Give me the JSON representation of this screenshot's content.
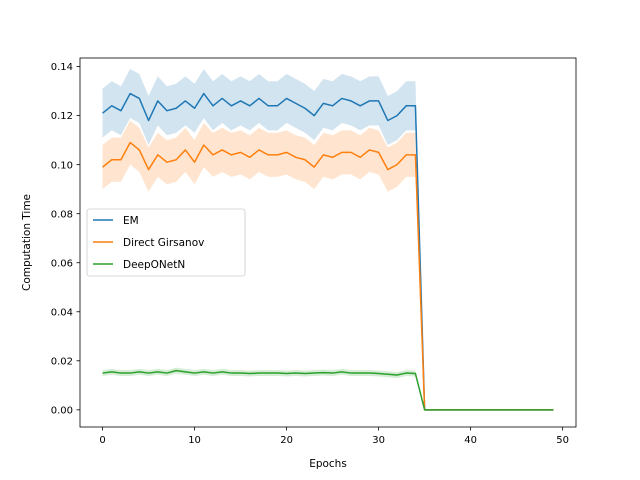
{
  "chart_data": {
    "type": "line",
    "title": "",
    "xlabel": "Epochs",
    "ylabel": "Computation Time",
    "xlim": [
      -2.45,
      51.45
    ],
    "ylim": [
      -0.007,
      0.1435
    ],
    "xticks": [
      0,
      10,
      20,
      30,
      40,
      50
    ],
    "yticks": [
      0.0,
      0.02,
      0.04,
      0.06,
      0.08,
      0.1,
      0.12,
      0.14
    ],
    "ytick_labels": [
      "0.00",
      "0.02",
      "0.04",
      "0.06",
      "0.08",
      "0.10",
      "0.12",
      "0.14"
    ],
    "legend": {
      "position": "center-left"
    },
    "grid": false,
    "series": [
      {
        "name": "EM",
        "color": "#1f77b4",
        "band_color": "#1f77b4",
        "x": [
          0,
          1,
          2,
          3,
          4,
          5,
          6,
          7,
          8,
          9,
          10,
          11,
          12,
          13,
          14,
          15,
          16,
          17,
          18,
          19,
          20,
          21,
          22,
          23,
          24,
          25,
          26,
          27,
          28,
          29,
          30,
          31,
          32,
          33,
          34,
          35,
          36,
          37,
          38,
          39,
          40,
          41,
          42,
          43,
          44,
          45,
          46,
          47,
          48,
          49
        ],
        "y": [
          0.121,
          0.124,
          0.122,
          0.129,
          0.127,
          0.118,
          0.126,
          0.122,
          0.123,
          0.126,
          0.123,
          0.129,
          0.124,
          0.127,
          0.124,
          0.126,
          0.124,
          0.127,
          0.124,
          0.124,
          0.127,
          0.125,
          0.123,
          0.12,
          0.125,
          0.124,
          0.127,
          0.126,
          0.124,
          0.126,
          0.126,
          0.118,
          0.12,
          0.124,
          0.124,
          0.0,
          0.0,
          0.0,
          0.0,
          0.0,
          0.0,
          0.0,
          0.0,
          0.0,
          0.0,
          0.0,
          0.0,
          0.0,
          0.0,
          0.0
        ],
        "band": 0.01
      },
      {
        "name": "Direct Girsanov",
        "color": "#ff7f0e",
        "band_color": "#ff7f0e",
        "x": [
          0,
          1,
          2,
          3,
          4,
          5,
          6,
          7,
          8,
          9,
          10,
          11,
          12,
          13,
          14,
          15,
          16,
          17,
          18,
          19,
          20,
          21,
          22,
          23,
          24,
          25,
          26,
          27,
          28,
          29,
          30,
          31,
          32,
          33,
          34,
          35,
          36,
          37,
          38,
          39,
          40,
          41,
          42,
          43,
          44,
          45,
          46,
          47,
          48,
          49
        ],
        "y": [
          0.099,
          0.102,
          0.102,
          0.109,
          0.106,
          0.098,
          0.104,
          0.101,
          0.102,
          0.106,
          0.101,
          0.108,
          0.104,
          0.106,
          0.104,
          0.105,
          0.103,
          0.106,
          0.104,
          0.104,
          0.105,
          0.103,
          0.102,
          0.099,
          0.104,
          0.103,
          0.105,
          0.105,
          0.103,
          0.106,
          0.105,
          0.098,
          0.1,
          0.104,
          0.104,
          0.0,
          0.0,
          0.0,
          0.0,
          0.0,
          0.0,
          0.0,
          0.0,
          0.0,
          0.0,
          0.0,
          0.0,
          0.0,
          0.0,
          0.0
        ],
        "band": 0.009
      },
      {
        "name": "DeepONetN",
        "color": "#2ca02c",
        "band_color": "#2ca02c",
        "x": [
          0,
          1,
          2,
          3,
          4,
          5,
          6,
          7,
          8,
          9,
          10,
          11,
          12,
          13,
          14,
          15,
          16,
          17,
          18,
          19,
          20,
          21,
          22,
          23,
          24,
          25,
          26,
          27,
          28,
          29,
          30,
          31,
          32,
          33,
          34,
          35,
          36,
          37,
          38,
          39,
          40,
          41,
          42,
          43,
          44,
          45,
          46,
          47,
          48,
          49
        ],
        "y": [
          0.015,
          0.0155,
          0.015,
          0.015,
          0.0155,
          0.015,
          0.0155,
          0.015,
          0.016,
          0.0155,
          0.015,
          0.0155,
          0.015,
          0.0155,
          0.015,
          0.015,
          0.0148,
          0.015,
          0.015,
          0.015,
          0.0148,
          0.015,
          0.0148,
          0.015,
          0.0152,
          0.015,
          0.0155,
          0.015,
          0.015,
          0.015,
          0.0148,
          0.0145,
          0.0142,
          0.015,
          0.0148,
          0.0,
          0.0,
          0.0,
          0.0,
          0.0,
          0.0,
          0.0,
          0.0,
          0.0,
          0.0,
          0.0,
          0.0,
          0.0,
          0.0,
          0.0
        ],
        "band": 0.0012
      }
    ]
  }
}
